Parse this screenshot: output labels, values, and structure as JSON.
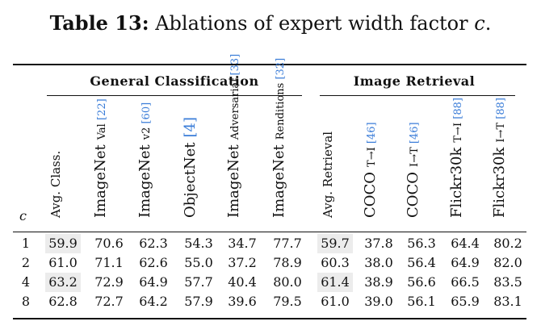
{
  "caption": {
    "label": "Table 13:",
    "text": "Ablations of expert width factor",
    "variable": "c",
    "end": "."
  },
  "groups": {
    "general": "General Classification",
    "retrieval": "Image Retrieval"
  },
  "c_header": "c",
  "columns": [
    {
      "main": "Avg. Class.",
      "sub": "",
      "cite": ""
    },
    {
      "main": "ImageNet",
      "sub": "Val",
      "cite": "[22]"
    },
    {
      "main": "ImageNet",
      "sub": "v2",
      "cite": "[60]"
    },
    {
      "main": "ObjectNet",
      "sub": "",
      "cite": "[4]"
    },
    {
      "main": "ImageNet",
      "sub": "Adversarial",
      "cite": "[33]"
    },
    {
      "main": "ImageNet",
      "sub": "Renditions",
      "cite": "[32]"
    },
    {
      "main": "Avg. Retrieval",
      "sub": "",
      "cite": ""
    },
    {
      "main": "COCO",
      "sub": "T→I",
      "cite": "[46]"
    },
    {
      "main": "COCO",
      "sub": "I→T",
      "cite": "[46]"
    },
    {
      "main": "Flickr30k",
      "sub": "T→I",
      "cite": "[88]"
    },
    {
      "main": "Flickr30k",
      "sub": "I→T",
      "cite": "[88]"
    }
  ],
  "rows": [
    {
      "c": "1",
      "values": [
        "59.9",
        "70.6",
        "62.3",
        "54.3",
        "34.7",
        "77.7",
        "59.7",
        "37.8",
        "56.3",
        "64.4",
        "80.2"
      ]
    },
    {
      "c": "2",
      "values": [
        "61.0",
        "71.1",
        "62.6",
        "55.0",
        "37.2",
        "78.9",
        "60.3",
        "38.0",
        "56.4",
        "64.9",
        "82.0"
      ]
    },
    {
      "c": "4",
      "values": [
        "63.2",
        "72.9",
        "64.9",
        "57.7",
        "40.4",
        "80.0",
        "61.4",
        "38.9",
        "56.6",
        "66.5",
        "83.5"
      ]
    },
    {
      "c": "8",
      "values": [
        "62.8",
        "72.7",
        "64.2",
        "57.9",
        "39.6",
        "79.5",
        "61.0",
        "39.0",
        "56.1",
        "65.9",
        "83.1"
      ]
    }
  ],
  "highlighted_cells": [
    [
      0,
      0
    ],
    [
      0,
      6
    ],
    [
      2,
      0
    ],
    [
      2,
      6
    ]
  ],
  "colors": {
    "citation": "#3b7dd8",
    "highlight": "#ececec",
    "text": "#111111"
  }
}
